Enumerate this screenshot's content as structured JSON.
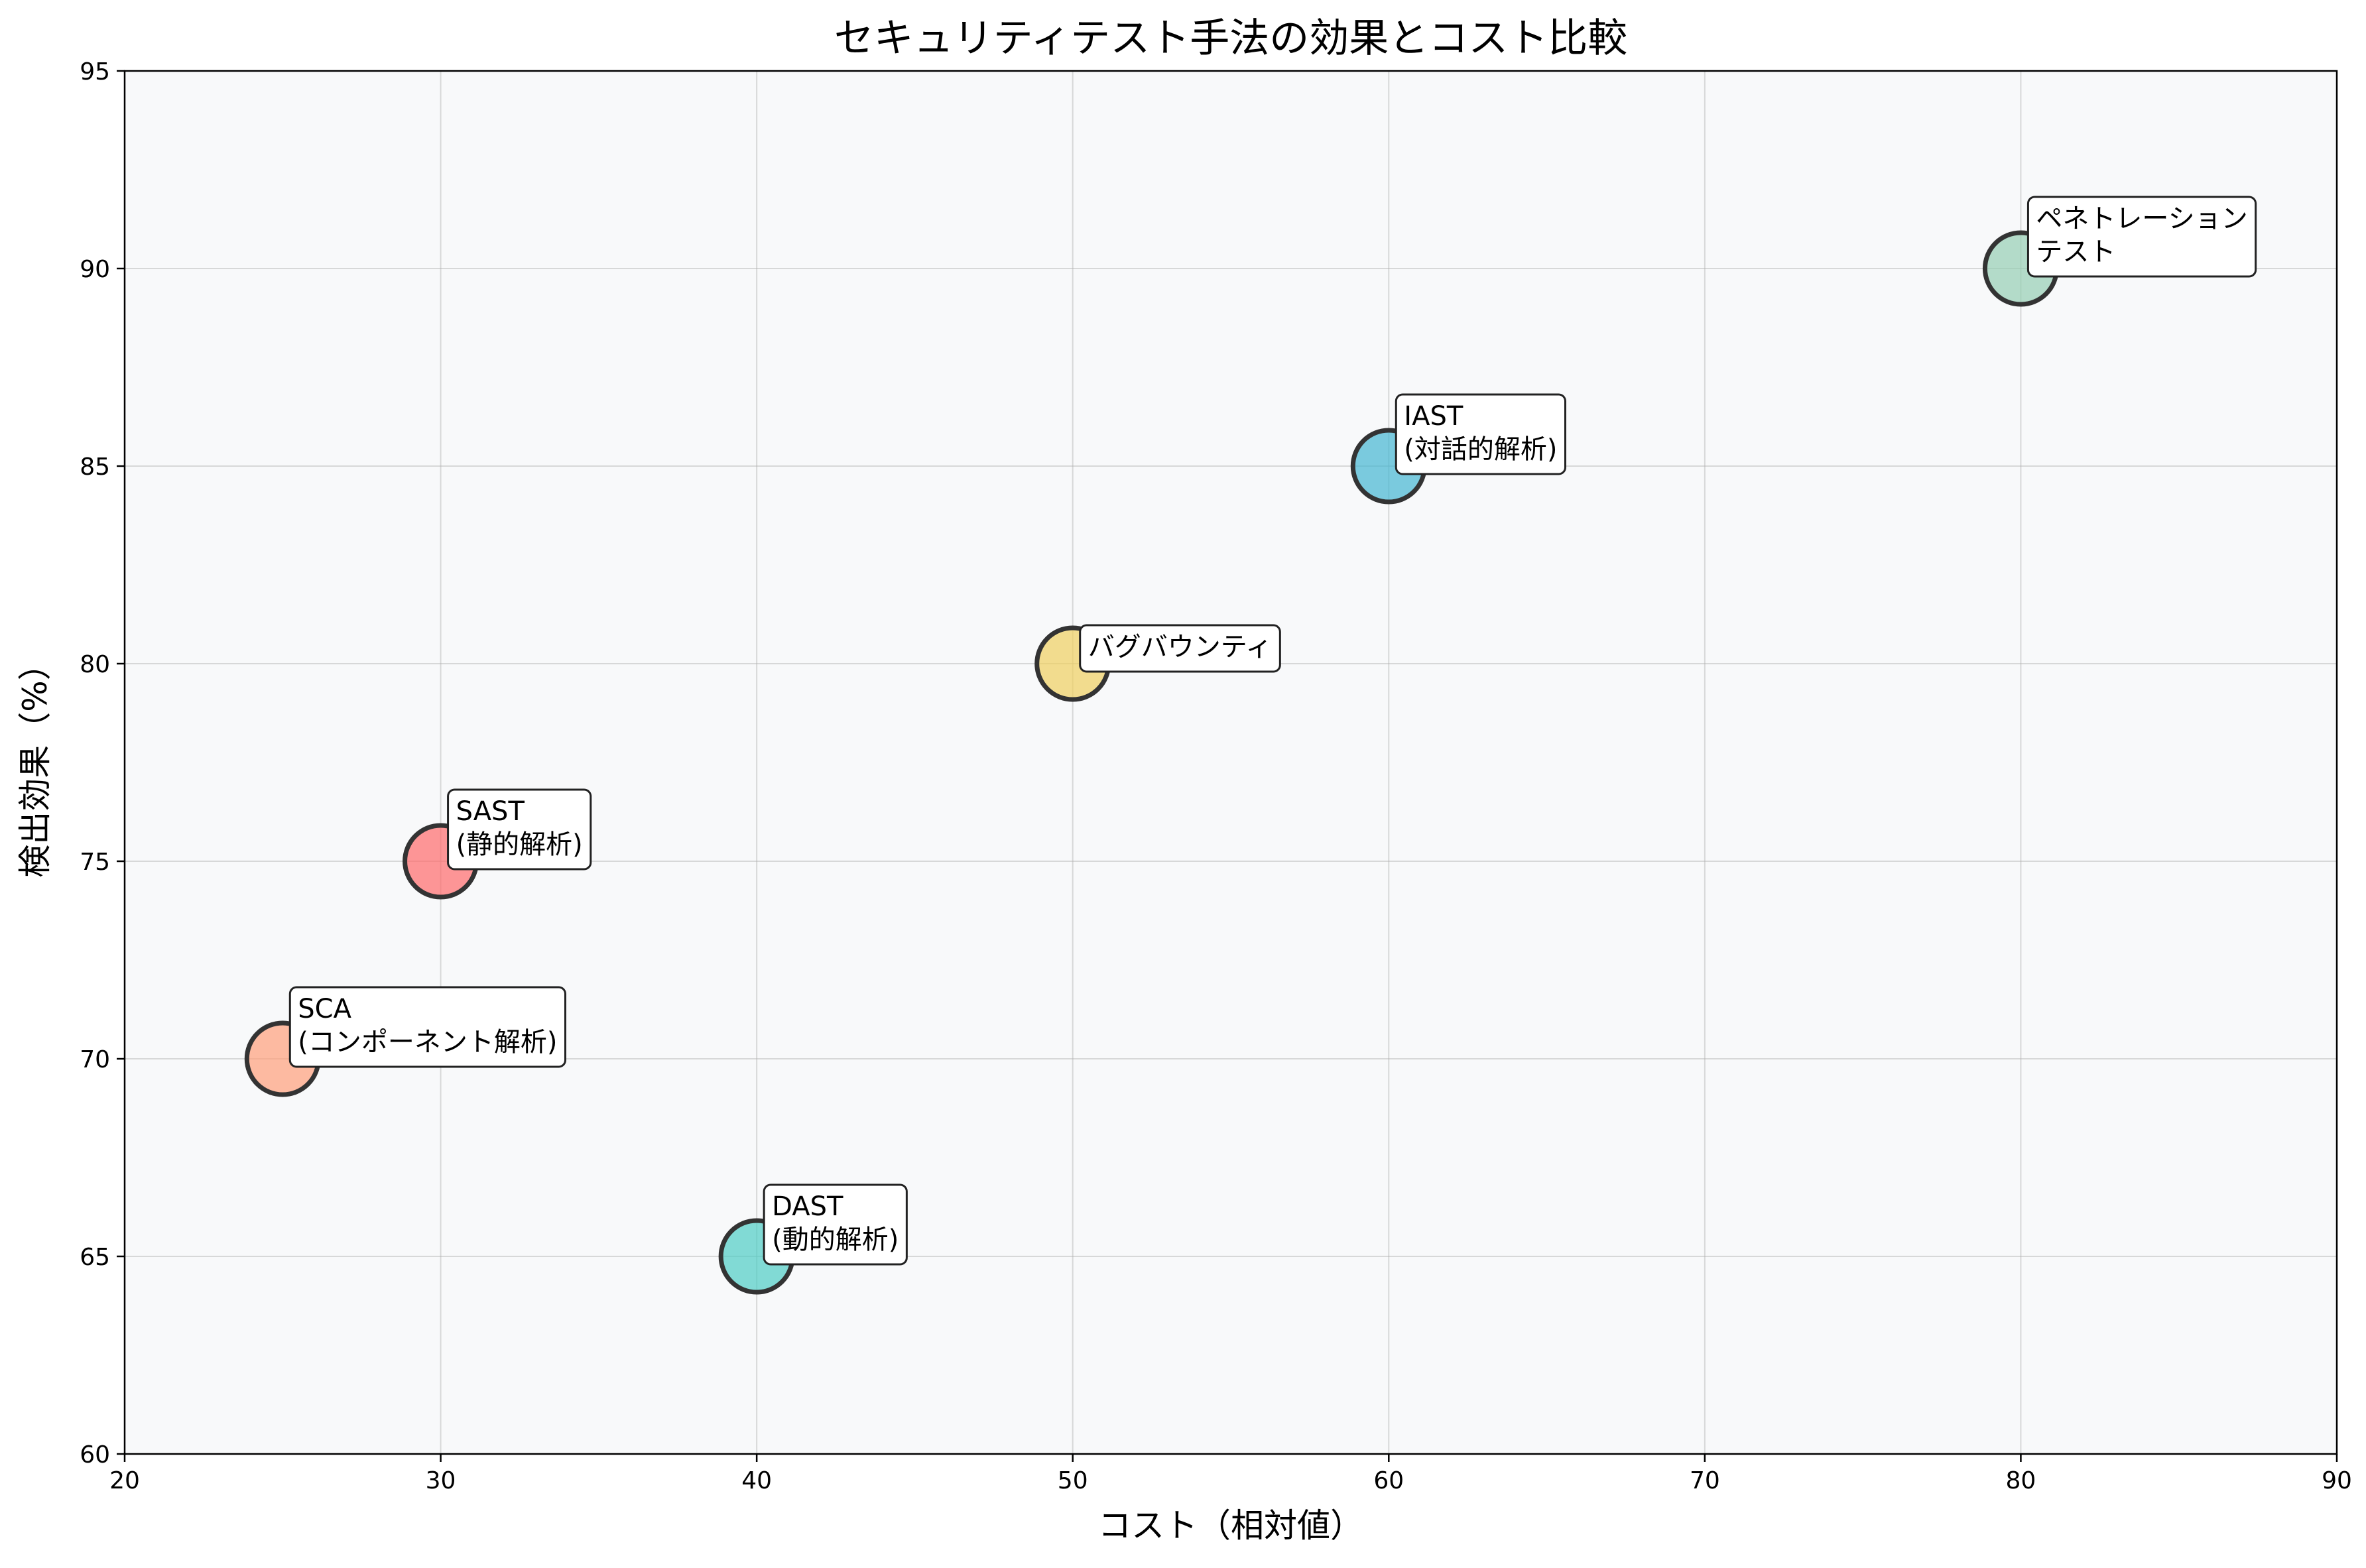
{
  "chart_data": {
    "type": "scatter",
    "title": "セキュリティテスト手法の効果とコスト比較",
    "xlabel": "コスト（相対値）",
    "ylabel": "検出効果（%）",
    "xlim": [
      20,
      90
    ],
    "ylim": [
      60,
      95
    ],
    "xticks": [
      20,
      30,
      40,
      50,
      60,
      70,
      80,
      90
    ],
    "yticks": [
      60,
      65,
      70,
      75,
      80,
      85,
      90,
      95
    ],
    "grid": true,
    "background": "#f8f9fa",
    "points": [
      {
        "label": [
          "SAST",
          "(静的解析)"
        ],
        "x": 30,
        "y": 75,
        "color": "#ff6b6b"
      },
      {
        "label": [
          "DAST",
          "(動的解析)"
        ],
        "x": 40,
        "y": 65,
        "color": "#4ecdc4"
      },
      {
        "label": [
          "IAST",
          "(対話的解析)"
        ],
        "x": 60,
        "y": 85,
        "color": "#45b7d1"
      },
      {
        "label": [
          "ペネトレーション",
          "テスト"
        ],
        "x": 80,
        "y": 90,
        "color": "#96ceb4"
      },
      {
        "label": [
          "SCA",
          "(コンポーネント解析)"
        ],
        "x": 25,
        "y": 70,
        "color": "#ffa07a"
      },
      {
        "label": [
          "バグバウンティ"
        ],
        "x": 50,
        "y": 80,
        "color": "#f0d060"
      }
    ]
  }
}
